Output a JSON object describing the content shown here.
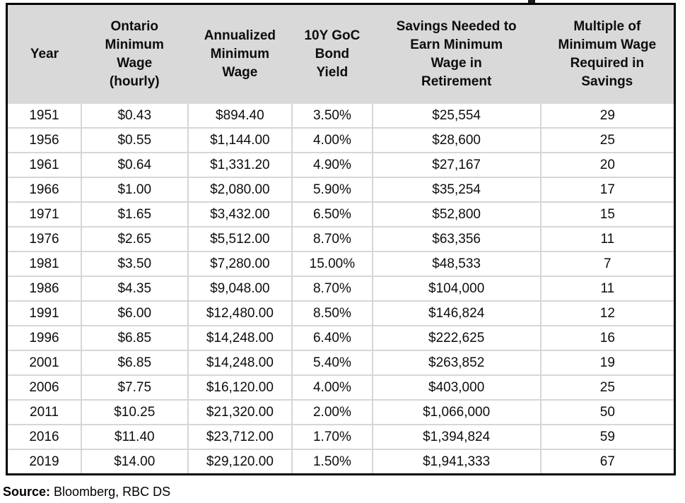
{
  "colors": {
    "header_bg": "#d9d9d9",
    "grid_line": "#d6d6d6",
    "outer_border": "#000000",
    "text": "#0d0d0d",
    "page_bg": "#ffffff"
  },
  "table": {
    "columns": [
      {
        "key": "year",
        "label": "Year"
      },
      {
        "key": "ontario-minimum-wage-hourly",
        "label": "Ontario\nMinimum\nWage\n(hourly)"
      },
      {
        "key": "annualized-minimum-wage",
        "label": "Annualized\nMinimum\nWage"
      },
      {
        "key": "10y-goc-bond-yield",
        "label": "10Y GoC\nBond\nYield"
      },
      {
        "key": "savings-needed",
        "label": "Savings Needed to\nEarn Minimum\nWage in\nRetirement"
      },
      {
        "key": "multiple-required",
        "label": "Multiple of\nMinimum Wage\nRequired in\nSavings"
      }
    ],
    "rows": [
      [
        "1951",
        "$0.43",
        "$894.40",
        "3.50%",
        "$25,554",
        "29"
      ],
      [
        "1956",
        "$0.55",
        "$1,144.00",
        "4.00%",
        "$28,600",
        "25"
      ],
      [
        "1961",
        "$0.64",
        "$1,331.20",
        "4.90%",
        "$27,167",
        "20"
      ],
      [
        "1966",
        "$1.00",
        "$2,080.00",
        "5.90%",
        "$35,254",
        "17"
      ],
      [
        "1971",
        "$1.65",
        "$3,432.00",
        "6.50%",
        "$52,800",
        "15"
      ],
      [
        "1976",
        "$2.65",
        "$5,512.00",
        "8.70%",
        "$63,356",
        "11"
      ],
      [
        "1981",
        "$3.50",
        "$7,280.00",
        "15.00%",
        "$48,533",
        "7"
      ],
      [
        "1986",
        "$4.35",
        "$9,048.00",
        "8.70%",
        "$104,000",
        "11"
      ],
      [
        "1991",
        "$6.00",
        "$12,480.00",
        "8.50%",
        "$146,824",
        "12"
      ],
      [
        "1996",
        "$6.85",
        "$14,248.00",
        "6.40%",
        "$222,625",
        "16"
      ],
      [
        "2001",
        "$6.85",
        "$14,248.00",
        "5.40%",
        "$263,852",
        "19"
      ],
      [
        "2006",
        "$7.75",
        "$16,120.00",
        "4.00%",
        "$403,000",
        "25"
      ],
      [
        "2011",
        "$10.25",
        "$21,320.00",
        "2.00%",
        "$1,066,000",
        "50"
      ],
      [
        "2016",
        "$11.40",
        "$23,712.00",
        "1.70%",
        "$1,394,824",
        "59"
      ],
      [
        "2019",
        "$14.00",
        "$29,120.00",
        "1.50%",
        "$1,941,333",
        "67"
      ]
    ]
  },
  "footer": {
    "source_label": "Source:",
    "source_text": " Bloomberg, RBC DS"
  },
  "chart_data": {
    "type": "table",
    "title": "",
    "columns": [
      "Year",
      "Ontario Minimum Wage (hourly)",
      "Annualized Minimum Wage",
      "10Y GoC Bond Yield",
      "Savings Needed to Earn Minimum Wage in Retirement",
      "Multiple of Minimum Wage Required in Savings"
    ],
    "years": [
      1951,
      1956,
      1961,
      1966,
      1971,
      1976,
      1981,
      1986,
      1991,
      1996,
      2001,
      2006,
      2011,
      2016,
      2019
    ],
    "series": [
      {
        "name": "Ontario Minimum Wage (hourly, $)",
        "values": [
          0.43,
          0.55,
          0.64,
          1.0,
          1.65,
          2.65,
          3.5,
          4.35,
          6.0,
          6.85,
          6.85,
          7.75,
          10.25,
          11.4,
          14.0
        ]
      },
      {
        "name": "Annualized Minimum Wage ($)",
        "values": [
          894.4,
          1144.0,
          1331.2,
          2080.0,
          3432.0,
          5512.0,
          7280.0,
          9048.0,
          12480.0,
          14248.0,
          14248.0,
          16120.0,
          21320.0,
          23712.0,
          29120.0
        ]
      },
      {
        "name": "10Y GoC Bond Yield (%)",
        "values": [
          3.5,
          4.0,
          4.9,
          5.9,
          6.5,
          8.7,
          15.0,
          8.7,
          8.5,
          6.4,
          5.4,
          4.0,
          2.0,
          1.7,
          1.5
        ]
      },
      {
        "name": "Savings Needed to Earn Minimum Wage in Retirement ($)",
        "values": [
          25554,
          28600,
          27167,
          35254,
          52800,
          63356,
          48533,
          104000,
          146824,
          222625,
          263852,
          403000,
          1066000,
          1394824,
          1941333
        ]
      },
      {
        "name": "Multiple of Minimum Wage Required in Savings",
        "values": [
          29,
          25,
          20,
          17,
          15,
          11,
          7,
          11,
          12,
          16,
          19,
          25,
          50,
          59,
          67
        ]
      }
    ],
    "source": "Bloomberg, RBC DS"
  }
}
